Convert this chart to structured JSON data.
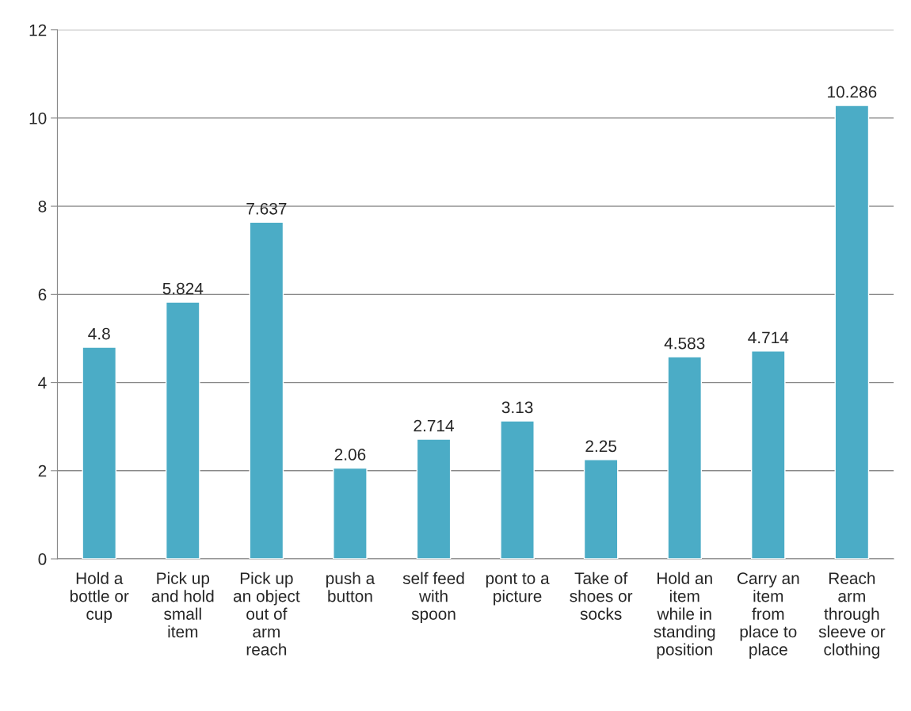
{
  "chart_data": {
    "type": "bar",
    "categories": [
      "Hold a\nbottle or\ncup",
      "Pick up\nand hold\nsmall\nitem",
      "Pick up\nan object\nout of\narm\nreach",
      "push a\nbutton",
      "self feed\nwith\nspoon",
      "pont to a\npicture",
      "Take of\nshoes or\nsocks",
      "Hold an\nitem\nwhile in\nstanding\nposition",
      "Carry an\nitem\nfrom\nplace to\nplace",
      "Reach\narm\nthrough\nsleeve or\nclothing"
    ],
    "values": [
      4.8,
      5.824,
      7.637,
      2.06,
      2.714,
      3.13,
      2.25,
      4.583,
      4.714,
      10.286
    ],
    "color": "#4bacc6",
    "ylim": [
      0,
      12
    ],
    "yticks": [
      0,
      2,
      4,
      6,
      8,
      10,
      12
    ],
    "grid": "y",
    "data_labels": true
  }
}
